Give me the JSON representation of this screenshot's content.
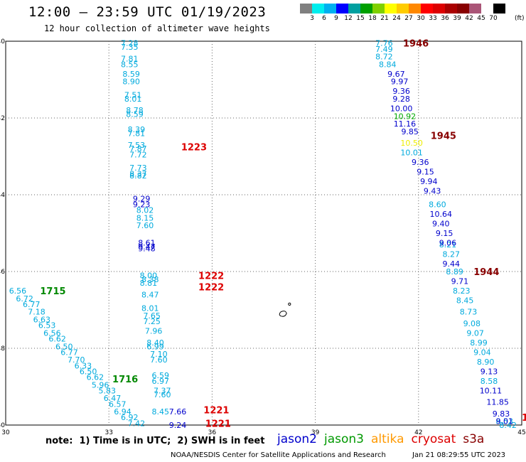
{
  "title": "12:00 — 23:59 UTC 01/19/2023",
  "subtitle": "12 hour collection of altimeter wave heights",
  "colorbar": {
    "colors": [
      "#808080",
      "#00eeee",
      "#00b0f0",
      "#0000ff",
      "#00a0a0",
      "#00a000",
      "#80d000",
      "#ffff00",
      "#ffcc00",
      "#ff8800",
      "#ff0000",
      "#dd0000",
      "#aa0000",
      "#880000",
      "#aa5577",
      "#ffffff",
      "#000000"
    ],
    "labels": [
      "3",
      "6",
      "9",
      "12",
      "15",
      "18",
      "21",
      "24",
      "27",
      "30",
      "33",
      "36",
      "39",
      "42",
      "45",
      "70"
    ],
    "unit": "(ft)"
  },
  "footer": {
    "note": "note:  1) Time is in UTC;  2) SWH is in feet",
    "credit": "NOAA/NESDIS Center for Satellite Applications and Research",
    "stamp": "Jan 21 08:29:55 UTC 2023"
  },
  "satellites": [
    {
      "name": "jason2",
      "color": "#0000cc"
    },
    {
      "name": "jason3",
      "color": "#009900"
    },
    {
      "name": "altika",
      "color": "#ff9900"
    },
    {
      "name": "cryosat",
      "color": "#dd0000"
    },
    {
      "name": "s3a",
      "color": "#880000"
    }
  ],
  "chart_data": {
    "type": "scatter",
    "title": "12:00 — 23:59 UTC 01/19/2023",
    "xlabel": "",
    "ylabel": "",
    "xlim": [
      30,
      45
    ],
    "ylim": [
      -50,
      -40
    ],
    "x_ticks": [
      30,
      33,
      36,
      39,
      42,
      45
    ],
    "y_ticks": [
      -40,
      -42,
      -44,
      -46,
      -48,
      -50
    ],
    "x_tick_labels": [
      "30",
      "33",
      "36",
      "39",
      "42",
      "45"
    ],
    "y_tick_labels": [
      "-40",
      "-42",
      "-44",
      "-46",
      "-48",
      "-50"
    ],
    "grid": true,
    "tracks": [
      {
        "color": "#00aadd",
        "points": [
          [
            33.6,
            -40.05,
            "7.28"
          ],
          [
            33.6,
            -40.15,
            "7.35"
          ],
          [
            33.6,
            -40.45,
            "7.81"
          ],
          [
            33.6,
            -40.6,
            "8.55"
          ],
          [
            33.65,
            -40.85,
            "8.59"
          ],
          [
            33.65,
            -41.05,
            "8.90"
          ],
          [
            33.7,
            -41.4,
            "7.51"
          ],
          [
            33.7,
            -41.5,
            "8.01"
          ],
          [
            33.75,
            -41.8,
            "8.78"
          ],
          [
            33.75,
            -41.9,
            "8.59"
          ],
          [
            33.8,
            -42.3,
            "8.39"
          ],
          [
            33.8,
            -42.4,
            "7.81"
          ],
          [
            33.8,
            -42.7,
            "7.53"
          ],
          [
            33.85,
            -42.8,
            "7.87"
          ],
          [
            33.85,
            -42.95,
            "7.72"
          ],
          [
            33.85,
            -43.3,
            "7.73"
          ],
          [
            33.85,
            -43.45,
            "8.37"
          ],
          [
            33.85,
            -43.5,
            "8.82"
          ],
          [
            34.05,
            -44.4,
            "8.02"
          ],
          [
            34.05,
            -44.6,
            "8.15"
          ],
          [
            34.05,
            -44.8,
            "7.60"
          ],
          [
            34.15,
            -46.1,
            "8.00"
          ],
          [
            34.2,
            -46.2,
            "8.38"
          ],
          [
            34.15,
            -46.3,
            "8.81"
          ],
          [
            34.2,
            -46.6,
            "8.47"
          ],
          [
            34.2,
            -46.95,
            "8.01"
          ],
          [
            34.25,
            -47.15,
            "7.65"
          ],
          [
            34.25,
            -47.3,
            "7.25"
          ],
          [
            34.3,
            -47.55,
            "7.96"
          ],
          [
            34.35,
            -47.85,
            "8.40"
          ],
          [
            34.35,
            -47.95,
            "6.99"
          ],
          [
            34.45,
            -48.15,
            "7.10"
          ],
          [
            34.45,
            -48.3,
            "7.60"
          ],
          [
            34.5,
            -48.7,
            "6.59"
          ],
          [
            34.5,
            -48.85,
            "6.97"
          ],
          [
            34.55,
            -49.1,
            "7.37"
          ],
          [
            34.55,
            -49.2,
            "7.60"
          ],
          [
            34.5,
            -49.65,
            "8.45"
          ],
          [
            30.35,
            -46.5,
            "6.56"
          ],
          [
            30.55,
            -46.7,
            "6.72"
          ],
          [
            30.75,
            -46.85,
            "6.77"
          ],
          [
            30.9,
            -47.05,
            "7.18"
          ],
          [
            31.05,
            -47.25,
            "6.63"
          ],
          [
            31.2,
            -47.4,
            "6.53"
          ],
          [
            31.35,
            -47.6,
            "6.56"
          ],
          [
            31.5,
            -47.75,
            "6.62"
          ],
          [
            31.7,
            -47.95,
            "6.50"
          ],
          [
            31.85,
            -48.1,
            "6.77"
          ],
          [
            32.05,
            -48.3,
            "7.70"
          ],
          [
            32.25,
            -48.45,
            "6.33"
          ],
          [
            32.4,
            -48.6,
            "6.50"
          ],
          [
            32.6,
            -48.75,
            "6.62"
          ],
          [
            32.75,
            -48.95,
            "5.96"
          ],
          [
            32.95,
            -49.1,
            "5.83"
          ],
          [
            33.1,
            -49.3,
            "6.47"
          ],
          [
            33.25,
            -49.45,
            "6.57"
          ],
          [
            33.4,
            -49.65,
            "6.94"
          ],
          [
            33.6,
            -49.8,
            "6.92"
          ],
          [
            33.8,
            -49.95,
            "7.42"
          ],
          [
            41.0,
            -40.05,
            "7.76"
          ],
          [
            41.0,
            -40.2,
            "7.49"
          ],
          [
            41.0,
            -40.4,
            "8.72"
          ],
          [
            41.1,
            -40.6,
            "8.84"
          ],
          [
            41.8,
            -42.9,
            "10.01"
          ],
          [
            42.55,
            -44.25,
            "8.60"
          ],
          [
            42.85,
            -45.3,
            "8.21"
          ],
          [
            42.95,
            -45.55,
            "8.27"
          ],
          [
            43.05,
            -46.0,
            "8.89"
          ],
          [
            43.25,
            -46.5,
            "8.23"
          ],
          [
            43.35,
            -46.75,
            "8.45"
          ],
          [
            43.45,
            -47.05,
            "8.73"
          ],
          [
            43.55,
            -47.35,
            "9.08"
          ],
          [
            43.65,
            -47.6,
            "9.07"
          ],
          [
            43.75,
            -47.85,
            "8.99"
          ],
          [
            43.85,
            -48.1,
            "9.04"
          ],
          [
            43.95,
            -48.35,
            "8.90"
          ],
          [
            44.05,
            -48.85,
            "8.58"
          ],
          [
            44.5,
            -49.9,
            "8.53"
          ],
          [
            44.6,
            -50.0,
            "8.42"
          ]
        ]
      },
      {
        "color": "#0000cc",
        "points": [
          [
            33.95,
            -44.1,
            "9.29"
          ],
          [
            33.95,
            -44.25,
            "9.23"
          ],
          [
            34.1,
            -45.25,
            "8.61"
          ],
          [
            34.1,
            -45.35,
            "9.47"
          ],
          [
            34.1,
            -45.4,
            "9.48"
          ],
          [
            35.0,
            -49.65,
            "7.66"
          ],
          [
            35.0,
            -50.0,
            "9.24"
          ],
          [
            41.35,
            -40.85,
            "9.67"
          ],
          [
            41.45,
            -41.05,
            "9.97"
          ],
          [
            41.5,
            -41.3,
            "9.36"
          ],
          [
            41.5,
            -41.5,
            "9.28"
          ],
          [
            41.5,
            -41.75,
            "10.00"
          ],
          [
            41.6,
            -42.15,
            "11.16"
          ],
          [
            41.75,
            -42.35,
            "9.85"
          ],
          [
            42.05,
            -43.15,
            "9.36"
          ],
          [
            42.2,
            -43.4,
            "9.15"
          ],
          [
            42.3,
            -43.65,
            "9.94"
          ],
          [
            42.4,
            -43.9,
            "9.43"
          ],
          [
            42.65,
            -44.5,
            "10.64"
          ],
          [
            42.65,
            -44.75,
            "9.40"
          ],
          [
            42.75,
            -45.0,
            "9.15"
          ],
          [
            42.85,
            -45.25,
            "9.06"
          ],
          [
            42.95,
            -45.8,
            "9.44"
          ],
          [
            43.2,
            -46.25,
            "9.71"
          ],
          [
            44.05,
            -48.6,
            "9.13"
          ],
          [
            44.1,
            -49.1,
            "10.11"
          ],
          [
            44.3,
            -49.4,
            "11.85"
          ],
          [
            44.4,
            -49.7,
            "9.83"
          ],
          [
            44.5,
            -49.9,
            "9.01"
          ]
        ]
      },
      {
        "color": "#00aa00",
        "points": [
          [
            41.6,
            -41.95,
            "10.92"
          ]
        ]
      },
      {
        "color": "#eeee00",
        "points": [
          [
            41.8,
            -42.65,
            "10.50"
          ]
        ]
      }
    ],
    "time_labels": [
      {
        "x": 35.1,
        "y": -42.75,
        "text": "1223",
        "color": "#dd0000"
      },
      {
        "x": 35.6,
        "y": -46.1,
        "text": "1222",
        "color": "#dd0000"
      },
      {
        "x": 35.6,
        "y": -46.4,
        "text": "1222",
        "color": "#dd0000"
      },
      {
        "x": 35.75,
        "y": -49.6,
        "text": "1221",
        "color": "#dd0000"
      },
      {
        "x": 35.8,
        "y": -49.95,
        "text": "1221",
        "color": "#dd0000"
      },
      {
        "x": 31.0,
        "y": -46.5,
        "text": "1715",
        "color": "#008800"
      },
      {
        "x": 33.1,
        "y": -48.8,
        "text": "1716",
        "color": "#008800"
      },
      {
        "x": 41.55,
        "y": -40.05,
        "text": "1946",
        "color": "#880000"
      },
      {
        "x": 42.35,
        "y": -42.45,
        "text": "1945",
        "color": "#880000"
      },
      {
        "x": 43.6,
        "y": -46.0,
        "text": "1944",
        "color": "#880000"
      },
      {
        "x": 45.0,
        "y": -49.8,
        "text": "1",
        "color": "#dd0000"
      }
    ]
  }
}
